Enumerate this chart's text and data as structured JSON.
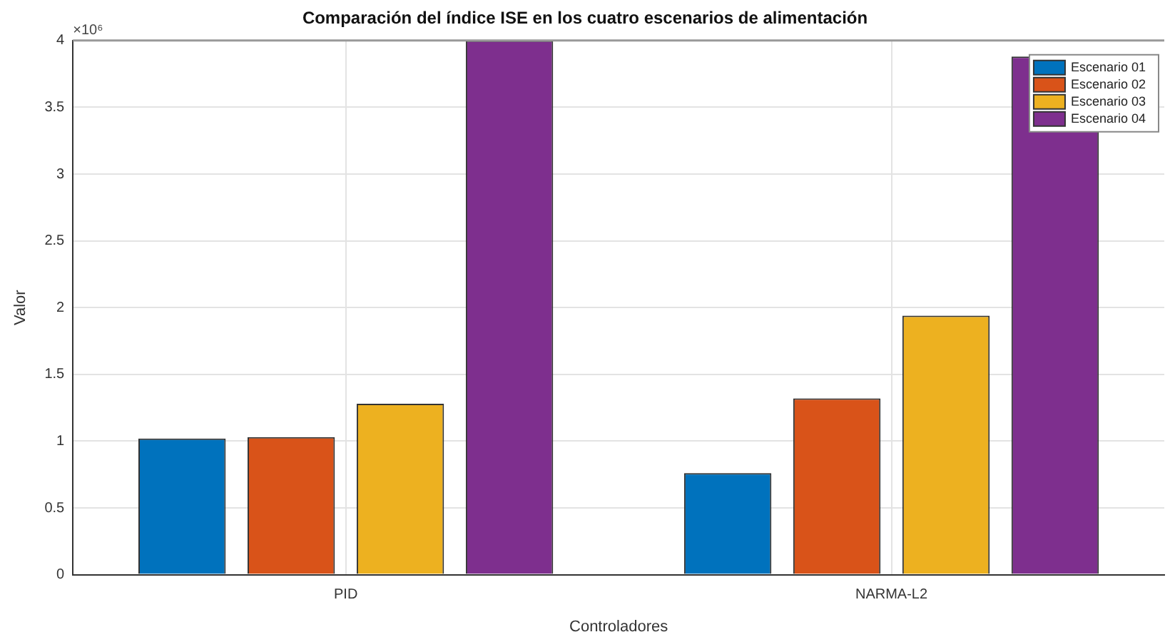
{
  "chart_data": {
    "type": "bar",
    "title": "Comparación del índice ISE en los cuatro escenarios de alimentación",
    "xlabel": "Controladores",
    "ylabel": "Valor",
    "categories": [
      "PID",
      "NARMA-L2"
    ],
    "series": [
      {
        "name": "Escenario 01",
        "color": "#0072bd",
        "values": [
          1.02,
          0.76
        ]
      },
      {
        "name": "Escenario 02",
        "color": "#d95319",
        "values": [
          1.03,
          1.32
        ]
      },
      {
        "name": "Escenario 03",
        "color": "#edb120",
        "values": [
          1.28,
          1.94
        ]
      },
      {
        "name": "Escenario 04",
        "color": "#7e2f8e",
        "values": [
          4.0,
          3.88
        ]
      }
    ],
    "ylim": [
      0,
      4
    ],
    "yticks": [
      0,
      0.5,
      1,
      1.5,
      2,
      2.5,
      3,
      3.5,
      4
    ],
    "annotations": [
      "×10⁶"
    ],
    "grid": true,
    "legend": "top right"
  }
}
